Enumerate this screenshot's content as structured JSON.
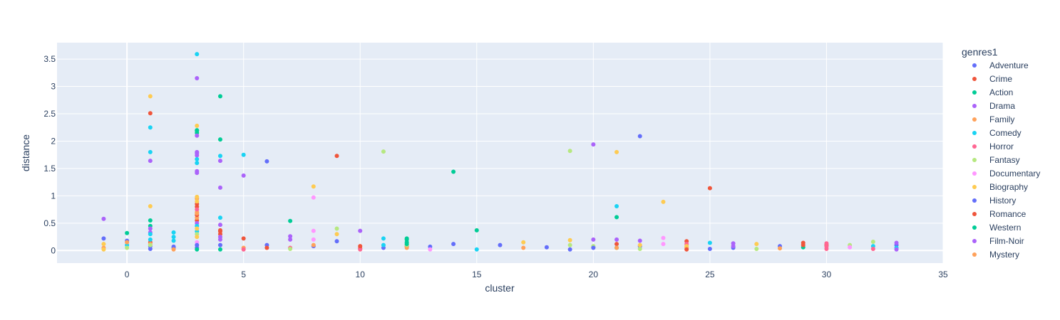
{
  "chart_data": {
    "type": "scatter",
    "xlabel": "cluster",
    "ylabel": "distance",
    "xlim": [
      -3,
      35
    ],
    "ylim": [
      -0.23,
      3.8
    ],
    "xticks": [
      0,
      5,
      10,
      15,
      20,
      25,
      30,
      35
    ],
    "yticks": [
      0,
      0.5,
      1,
      1.5,
      2,
      2.5,
      3,
      3.5
    ],
    "xtick_labels": [
      "0",
      "5",
      "10",
      "15",
      "20",
      "25",
      "30",
      "35"
    ],
    "ytick_labels": [
      "0",
      "0.5",
      "1",
      "1.5",
      "2",
      "2.5",
      "3",
      "3.5"
    ],
    "grid": true,
    "legend_placement": "right",
    "legend_title": "genres1",
    "colors": {
      "plot_bg": "#E5ECF6",
      "grid": "#ffffff",
      "text": "#2a3f5f"
    },
    "series": [
      {
        "name": "Adventure",
        "color": "#636EFA",
        "points": [
          [
            -1,
            0.22
          ],
          [
            0,
            0.18
          ],
          [
            1,
            0.08
          ],
          [
            1,
            0.03
          ],
          [
            2,
            0.07
          ],
          [
            3,
            0.05
          ],
          [
            4,
            0.1
          ],
          [
            6,
            1.63
          ],
          [
            6,
            0.1
          ],
          [
            8,
            0.08
          ],
          [
            11,
            0.05
          ],
          [
            13,
            0.07
          ],
          [
            16,
            0.1
          ],
          [
            18,
            0.06
          ],
          [
            19,
            0.02
          ],
          [
            20,
            0.06
          ],
          [
            22,
            2.09
          ],
          [
            22,
            0.08
          ],
          [
            26,
            0.05
          ],
          [
            28,
            0.08
          ],
          [
            33,
            0.1
          ]
        ]
      },
      {
        "name": "Crime",
        "color": "#EF553B",
        "points": [
          [
            1,
            2.51
          ],
          [
            1,
            0.15
          ],
          [
            3,
            0.85
          ],
          [
            3,
            0.8
          ],
          [
            3,
            0.55
          ],
          [
            4,
            0.37
          ],
          [
            4,
            0.3
          ],
          [
            5,
            0.22
          ],
          [
            6,
            0.05
          ],
          [
            9,
            1.73
          ],
          [
            10,
            0.04
          ],
          [
            12,
            0.08
          ],
          [
            21,
            0.12
          ],
          [
            24,
            0.17
          ],
          [
            25,
            1.14
          ],
          [
            29,
            0.14
          ],
          [
            30,
            0.1
          ]
        ]
      },
      {
        "name": "Action",
        "color": "#00CC96",
        "points": [
          [
            0,
            0.32
          ],
          [
            1,
            0.55
          ],
          [
            1,
            0.45
          ],
          [
            3,
            2.2
          ],
          [
            3,
            2.15
          ],
          [
            4,
            2.82
          ],
          [
            4,
            2.03
          ],
          [
            7,
            0.54
          ],
          [
            12,
            0.22
          ],
          [
            12,
            0.15
          ],
          [
            14,
            1.44
          ],
          [
            15,
            0.37
          ],
          [
            21,
            0.61
          ],
          [
            21,
            0.05
          ],
          [
            29,
            0.06
          ]
        ]
      },
      {
        "name": "Drama",
        "color": "#AB63FA",
        "points": [
          [
            -1,
            0.58
          ],
          [
            1,
            1.64
          ],
          [
            1,
            0.4
          ],
          [
            1,
            0.33
          ],
          [
            3,
            3.15
          ],
          [
            3,
            2.1
          ],
          [
            3,
            1.8
          ],
          [
            3,
            1.74
          ],
          [
            3,
            1.45
          ],
          [
            3,
            1.42
          ],
          [
            3,
            0.5
          ],
          [
            4,
            1.64
          ],
          [
            4,
            1.15
          ],
          [
            4,
            0.47
          ],
          [
            4,
            0.2
          ],
          [
            5,
            1.37
          ],
          [
            7,
            0.26
          ],
          [
            7,
            0.2
          ],
          [
            10,
            0.36
          ],
          [
            20,
            1.94
          ],
          [
            20,
            0.2
          ],
          [
            21,
            0.2
          ],
          [
            22,
            0.18
          ],
          [
            26,
            0.13
          ],
          [
            33,
            0.14
          ]
        ]
      },
      {
        "name": "Family",
        "color": "#FFA15A",
        "points": [
          [
            -1,
            0.05
          ],
          [
            1,
            0.12
          ],
          [
            3,
            0.95
          ],
          [
            3,
            0.7
          ],
          [
            3,
            0.6
          ],
          [
            5,
            0.05
          ],
          [
            8,
            0.1
          ],
          [
            12,
            0.05
          ],
          [
            17,
            0.05
          ],
          [
            24,
            0.05
          ],
          [
            28,
            0.04
          ]
        ]
      },
      {
        "name": "Comedy",
        "color": "#19D3F3",
        "points": [
          [
            0,
            0.1
          ],
          [
            1,
            2.25
          ],
          [
            1,
            1.8
          ],
          [
            1,
            0.3
          ],
          [
            1,
            0.2
          ],
          [
            2,
            0.33
          ],
          [
            2,
            0.25
          ],
          [
            2,
            0.18
          ],
          [
            3,
            3.59
          ],
          [
            3,
            1.67
          ],
          [
            3,
            1.6
          ],
          [
            3,
            0.45
          ],
          [
            3,
            0.35
          ],
          [
            4,
            1.73
          ],
          [
            4,
            0.6
          ],
          [
            5,
            1.75
          ],
          [
            11,
            0.22
          ],
          [
            11,
            0.1
          ],
          [
            15,
            0.02
          ],
          [
            21,
            0.81
          ],
          [
            25,
            0.14
          ],
          [
            32,
            0.08
          ],
          [
            33,
            0.05
          ]
        ]
      },
      {
        "name": "Horror",
        "color": "#FF6692",
        "points": [
          [
            3,
            0.75
          ],
          [
            5,
            0.02
          ],
          [
            7,
            0.05
          ],
          [
            10,
            0.02
          ],
          [
            24,
            0.12
          ],
          [
            30,
            0.13
          ],
          [
            30,
            0.07
          ],
          [
            30,
            0.03
          ],
          [
            32,
            0.03
          ]
        ]
      },
      {
        "name": "Fantasy",
        "color": "#B6E880",
        "points": [
          [
            0,
            0.05
          ],
          [
            1,
            0.1
          ],
          [
            3,
            0.3
          ],
          [
            7,
            0.03
          ],
          [
            9,
            0.4
          ],
          [
            11,
            1.81
          ],
          [
            12,
            0.1
          ],
          [
            19,
            1.82
          ],
          [
            19,
            0.1
          ],
          [
            20,
            0.08
          ],
          [
            22,
            0.03
          ],
          [
            27,
            0.03
          ],
          [
            31,
            0.1
          ],
          [
            32,
            0.16
          ]
        ]
      },
      {
        "name": "Documentary",
        "color": "#FF97FF",
        "points": [
          [
            3,
            0.15
          ],
          [
            8,
            0.97
          ],
          [
            8,
            0.36
          ],
          [
            8,
            0.2
          ],
          [
            13,
            0.02
          ],
          [
            23,
            0.23
          ],
          [
            23,
            0.12
          ],
          [
            31,
            0.06
          ]
        ]
      },
      {
        "name": "Biography",
        "color": "#FECB52",
        "points": [
          [
            -1,
            0.12
          ],
          [
            -1,
            0.02
          ],
          [
            1,
            2.82
          ],
          [
            1,
            0.81
          ],
          [
            3,
            2.28
          ],
          [
            3,
            0.98
          ],
          [
            3,
            0.9
          ],
          [
            3,
            0.4
          ],
          [
            3,
            0.25
          ],
          [
            8,
            1.17
          ],
          [
            9,
            0.3
          ],
          [
            17,
            0.15
          ],
          [
            19,
            0.19
          ],
          [
            21,
            1.8
          ],
          [
            22,
            0.1
          ],
          [
            23,
            0.89
          ],
          [
            24,
            0.08
          ],
          [
            27,
            0.12
          ]
        ]
      },
      {
        "name": "History",
        "color": "#636EFA",
        "points": [
          [
            2,
            0.05
          ],
          [
            3,
            0.1
          ],
          [
            9,
            0.17
          ],
          [
            14,
            0.12
          ],
          [
            20,
            0.05
          ],
          [
            25,
            0.03
          ]
        ]
      },
      {
        "name": "Romance",
        "color": "#EF553B",
        "points": [
          [
            3,
            0.65
          ],
          [
            4,
            0.35
          ],
          [
            10,
            0.08
          ],
          [
            24,
            0.02
          ],
          [
            29,
            0.1
          ]
        ]
      },
      {
        "name": "Western",
        "color": "#00CC96",
        "points": [
          [
            3,
            2.19
          ],
          [
            3,
            0.02
          ],
          [
            4,
            0.02
          ],
          [
            12,
            0.2
          ],
          [
            12,
            0.12
          ]
        ]
      },
      {
        "name": "Film-Noir",
        "color": "#AB63FA",
        "points": [
          [
            3,
            1.78
          ],
          [
            4,
            0.25
          ],
          [
            26,
            0.08
          ],
          [
            33,
            0.02
          ]
        ]
      },
      {
        "name": "Mystery",
        "color": "#FFA15A",
        "points": [
          [
            0,
            0.15
          ],
          [
            2,
            0.02
          ],
          [
            3,
            0.68
          ],
          [
            21,
            0.05
          ]
        ]
      }
    ]
  }
}
